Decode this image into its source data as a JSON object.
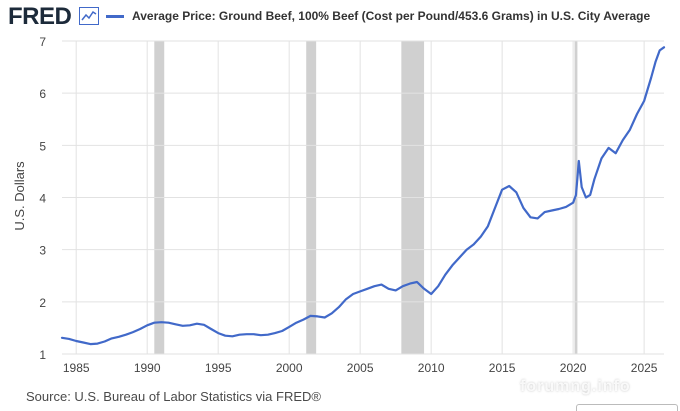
{
  "header": {
    "logo_text": "FRED",
    "logo_icon": "line-chart-icon",
    "legend_label": "Average Price: Ground Beef, 100% Beef (Cost per Pound/453.6 Grams) in U.S. City Average"
  },
  "source_text": "Source: U.S. Bureau of Labor Statistics via FRED®",
  "watermark_text": "forumng.info",
  "colors": {
    "series": "#4169c9",
    "recession": "#d0d0d0",
    "grid": "#e2e2e2",
    "axis_text": "#444444"
  },
  "chart_data": {
    "type": "line",
    "title": "Average Price: Ground Beef, 100% Beef (Cost per Pound/453.6 Grams) in U.S. City Average",
    "xlabel": "",
    "ylabel": "U.S. Dollars",
    "xlim": [
      1984.0,
      2026.4
    ],
    "ylim": [
      1,
      7
    ],
    "x_ticks": [
      1985,
      1990,
      1995,
      2000,
      2005,
      2010,
      2015,
      2020,
      2025
    ],
    "y_ticks": [
      1,
      2,
      3,
      4,
      5,
      6,
      7
    ],
    "grid": true,
    "legend_position": "top",
    "recessions": [
      [
        1990.5,
        1991.2
      ],
      [
        2001.2,
        2001.9
      ],
      [
        2007.9,
        2009.5
      ],
      [
        2020.1,
        2020.3
      ]
    ],
    "series": [
      {
        "name": "Average Price: Ground Beef, 100% Beef (Cost per Pound/453.6 Grams) in U.S. City Average",
        "points": [
          [
            1984.0,
            1.31
          ],
          [
            1984.5,
            1.29
          ],
          [
            1985.0,
            1.25
          ],
          [
            1985.5,
            1.22
          ],
          [
            1986.0,
            1.19
          ],
          [
            1986.5,
            1.2
          ],
          [
            1987.0,
            1.24
          ],
          [
            1987.5,
            1.3
          ],
          [
            1988.0,
            1.33
          ],
          [
            1988.5,
            1.37
          ],
          [
            1989.0,
            1.42
          ],
          [
            1989.5,
            1.48
          ],
          [
            1990.0,
            1.55
          ],
          [
            1990.5,
            1.6
          ],
          [
            1991.0,
            1.61
          ],
          [
            1991.5,
            1.6
          ],
          [
            1992.0,
            1.57
          ],
          [
            1992.5,
            1.54
          ],
          [
            1993.0,
            1.55
          ],
          [
            1993.5,
            1.58
          ],
          [
            1994.0,
            1.56
          ],
          [
            1994.5,
            1.48
          ],
          [
            1995.0,
            1.4
          ],
          [
            1995.5,
            1.35
          ],
          [
            1996.0,
            1.34
          ],
          [
            1996.5,
            1.37
          ],
          [
            1997.0,
            1.38
          ],
          [
            1997.5,
            1.38
          ],
          [
            1998.0,
            1.36
          ],
          [
            1998.5,
            1.37
          ],
          [
            1999.0,
            1.4
          ],
          [
            1999.5,
            1.44
          ],
          [
            2000.0,
            1.52
          ],
          [
            2000.5,
            1.6
          ],
          [
            2001.0,
            1.66
          ],
          [
            2001.5,
            1.73
          ],
          [
            2002.0,
            1.72
          ],
          [
            2002.5,
            1.7
          ],
          [
            2003.0,
            1.78
          ],
          [
            2003.5,
            1.9
          ],
          [
            2004.0,
            2.05
          ],
          [
            2004.5,
            2.15
          ],
          [
            2005.0,
            2.2
          ],
          [
            2005.5,
            2.25
          ],
          [
            2006.0,
            2.3
          ],
          [
            2006.5,
            2.33
          ],
          [
            2007.0,
            2.25
          ],
          [
            2007.5,
            2.22
          ],
          [
            2008.0,
            2.3
          ],
          [
            2008.5,
            2.35
          ],
          [
            2009.0,
            2.38
          ],
          [
            2009.5,
            2.25
          ],
          [
            2010.0,
            2.15
          ],
          [
            2010.5,
            2.3
          ],
          [
            2011.0,
            2.52
          ],
          [
            2011.5,
            2.7
          ],
          [
            2012.0,
            2.85
          ],
          [
            2012.5,
            3.0
          ],
          [
            2013.0,
            3.1
          ],
          [
            2013.5,
            3.25
          ],
          [
            2014.0,
            3.45
          ],
          [
            2014.5,
            3.8
          ],
          [
            2015.0,
            4.15
          ],
          [
            2015.5,
            4.22
          ],
          [
            2016.0,
            4.1
          ],
          [
            2016.5,
            3.8
          ],
          [
            2017.0,
            3.62
          ],
          [
            2017.5,
            3.6
          ],
          [
            2018.0,
            3.72
          ],
          [
            2018.5,
            3.75
          ],
          [
            2019.0,
            3.78
          ],
          [
            2019.5,
            3.82
          ],
          [
            2020.0,
            3.9
          ],
          [
            2020.2,
            4.05
          ],
          [
            2020.4,
            4.7
          ],
          [
            2020.6,
            4.2
          ],
          [
            2020.9,
            4.0
          ],
          [
            2021.2,
            4.05
          ],
          [
            2021.5,
            4.35
          ],
          [
            2022.0,
            4.75
          ],
          [
            2022.5,
            4.95
          ],
          [
            2023.0,
            4.85
          ],
          [
            2023.5,
            5.1
          ],
          [
            2024.0,
            5.3
          ],
          [
            2024.5,
            5.6
          ],
          [
            2025.0,
            5.85
          ],
          [
            2025.5,
            6.3
          ],
          [
            2025.8,
            6.6
          ],
          [
            2026.1,
            6.82
          ],
          [
            2026.4,
            6.88
          ]
        ]
      }
    ]
  }
}
